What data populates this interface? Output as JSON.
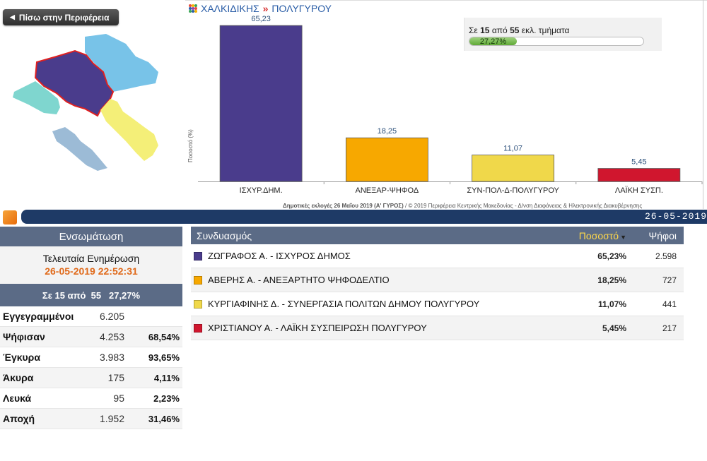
{
  "nav": {
    "back_label": "Πίσω στην Περιφέρεια"
  },
  "breadcrumb": {
    "region": "ΧΑΛΚΙΔΙΚΗΣ",
    "separator": "»",
    "municipality": "ΠΟΛΥΓΥΡΟΥ"
  },
  "progress": {
    "prefix": "Σε",
    "counted": "15",
    "middle": "από",
    "total": "55",
    "suffix": "εκλ. τμήματα",
    "percent_label": "27,27%",
    "percent_value": 27.27
  },
  "chart_data": {
    "type": "bar",
    "categories": [
      "ΙΣΧΥΡ.ΔΗΜ.",
      "ΑΝΕΞΑΡ-ΨΗΦΟΔ",
      "ΣΥΝ-ΠΟΛ-Δ-ΠΟΛΥΓΥΡΟΥ",
      "ΛΑΪΚΗ ΣΥΣΠ."
    ],
    "values": [
      65.23,
      18.25,
      11.07,
      5.45
    ],
    "value_labels": [
      "65,23",
      "18,25",
      "11,07",
      "5,45"
    ],
    "colors": [
      "#4a3c8c",
      "#f7a800",
      "#f0d84a",
      "#d0162e"
    ],
    "ylabel": "Ποσοστό (%)",
    "ylim": [
      0,
      70
    ],
    "grid": false
  },
  "footnote": {
    "election": "Δημοτικές εκλογές 26 Μαΐου 2019 (Α' ΓΥΡΟΣ)",
    "credit": " / © 2019 Περιφέρεια Κεντρικής Μακεδονίας - Δ/νση Διαφάνειας & Ηλεκτρονικής Διακυβέρνησης"
  },
  "strip": {
    "date": "26-05-2019"
  },
  "left_panel": {
    "header": "Ενσωμάτωση",
    "update_title": "Τελευταία Ενημέρωση",
    "update_time": "26-05-2019 22:52:31",
    "section": "Σε 15 από  55   27,27%",
    "stats": [
      {
        "label": "Εγγεγραμμένοι",
        "value": "6.205",
        "pct": ""
      },
      {
        "label": "Ψήφισαν",
        "value": "4.253",
        "pct": "68,54%"
      },
      {
        "label": "Έγκυρα",
        "value": "3.983",
        "pct": "93,65%"
      },
      {
        "label": "Άκυρα",
        "value": "175",
        "pct": "4,11%"
      },
      {
        "label": "Λευκά",
        "value": "95",
        "pct": "2,23%"
      },
      {
        "label": "Αποχή",
        "value": "1.952",
        "pct": "31,46%"
      }
    ]
  },
  "results": {
    "headers": {
      "coalition": "Συνδυασμός",
      "percent": "Ποσοστό",
      "votes": "Ψήφοι"
    },
    "rows": [
      {
        "name": "ΖΩΓΡΑΦΟΣ Α. - ΙΣΧΥΡΟΣ ΔΗΜΟΣ",
        "percent": "65,23%",
        "votes": "2.598",
        "color": "#4a3c8c"
      },
      {
        "name": "ΑΒΕΡΗΣ Α. - ΑΝΕΞΑΡΤΗΤΟ ΨΗΦΟΔΕΛΤΙΟ",
        "percent": "18,25%",
        "votes": "727",
        "color": "#f7a800"
      },
      {
        "name": "ΚΥΡΓΙΑΦΙΝΗΣ Δ. - ΣΥΝΕΡΓΑΣΙΑ ΠΟΛΙΤΩΝ ΔΗΜΟΥ ΠΟΛΥΓΥΡΟΥ",
        "percent": "11,07%",
        "votes": "441",
        "color": "#f0d84a"
      },
      {
        "name": "ΧΡΙΣΤΙΑΝΟΥ Α. - ΛΑΪΚΗ ΣΥΣΠΕΙΡΩΣΗ ΠΟΛΥΓΥΡΟΥ",
        "percent": "5,45%",
        "votes": "217",
        "color": "#d0162e"
      }
    ]
  }
}
